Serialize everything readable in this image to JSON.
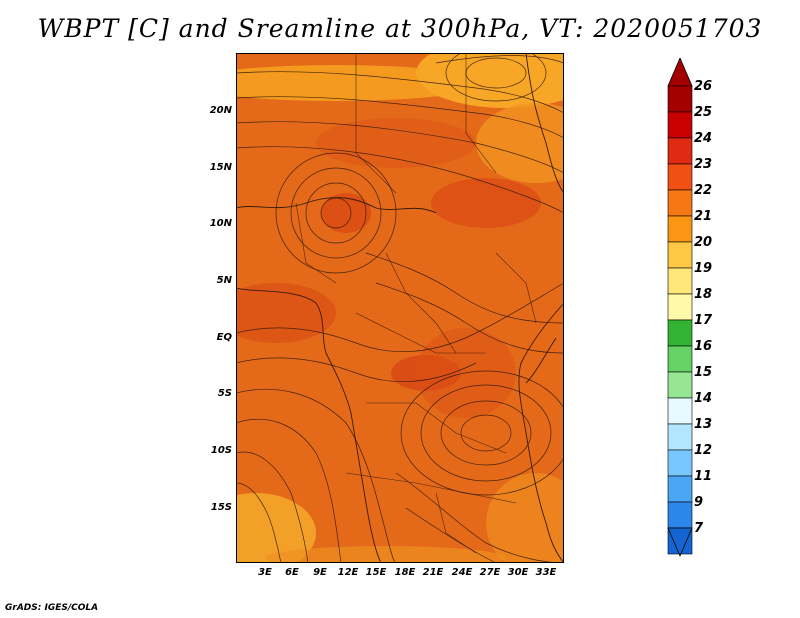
{
  "title": "WBPT [C] and Sreamline at 300hPa, VT: 2020051703",
  "lat_labels": [
    "20N",
    "15N",
    "10N",
    "5N",
    "EQ",
    "5S",
    "10S",
    "15S"
  ],
  "lon_labels": [
    "3E",
    "6E",
    "9E",
    "12E",
    "15E",
    "18E",
    "21E",
    "24E",
    "27E",
    "30E",
    "33E"
  ],
  "colorbar": {
    "labels": [
      "26",
      "25",
      "24",
      "23",
      "22",
      "21",
      "20",
      "19",
      "18",
      "17",
      "16",
      "15",
      "14",
      "13",
      "12",
      "11",
      "9",
      "7"
    ],
    "colors": [
      "#a50000",
      "#c80000",
      "#e12a14",
      "#f05014",
      "#f57814",
      "#fa9614",
      "#ffc846",
      "#ffe678",
      "#fffaaa",
      "#32b432",
      "#64d264",
      "#96e696",
      "#e6faff",
      "#b4e6ff",
      "#78c8ff",
      "#4ba5f5",
      "#2d87eb",
      "#1464d2"
    ]
  },
  "map_colors": {
    "base": "#e46a1a",
    "dark": "#db4a12",
    "light": "#f2951e"
  },
  "credit": "GrADS: IGES/COLA"
}
